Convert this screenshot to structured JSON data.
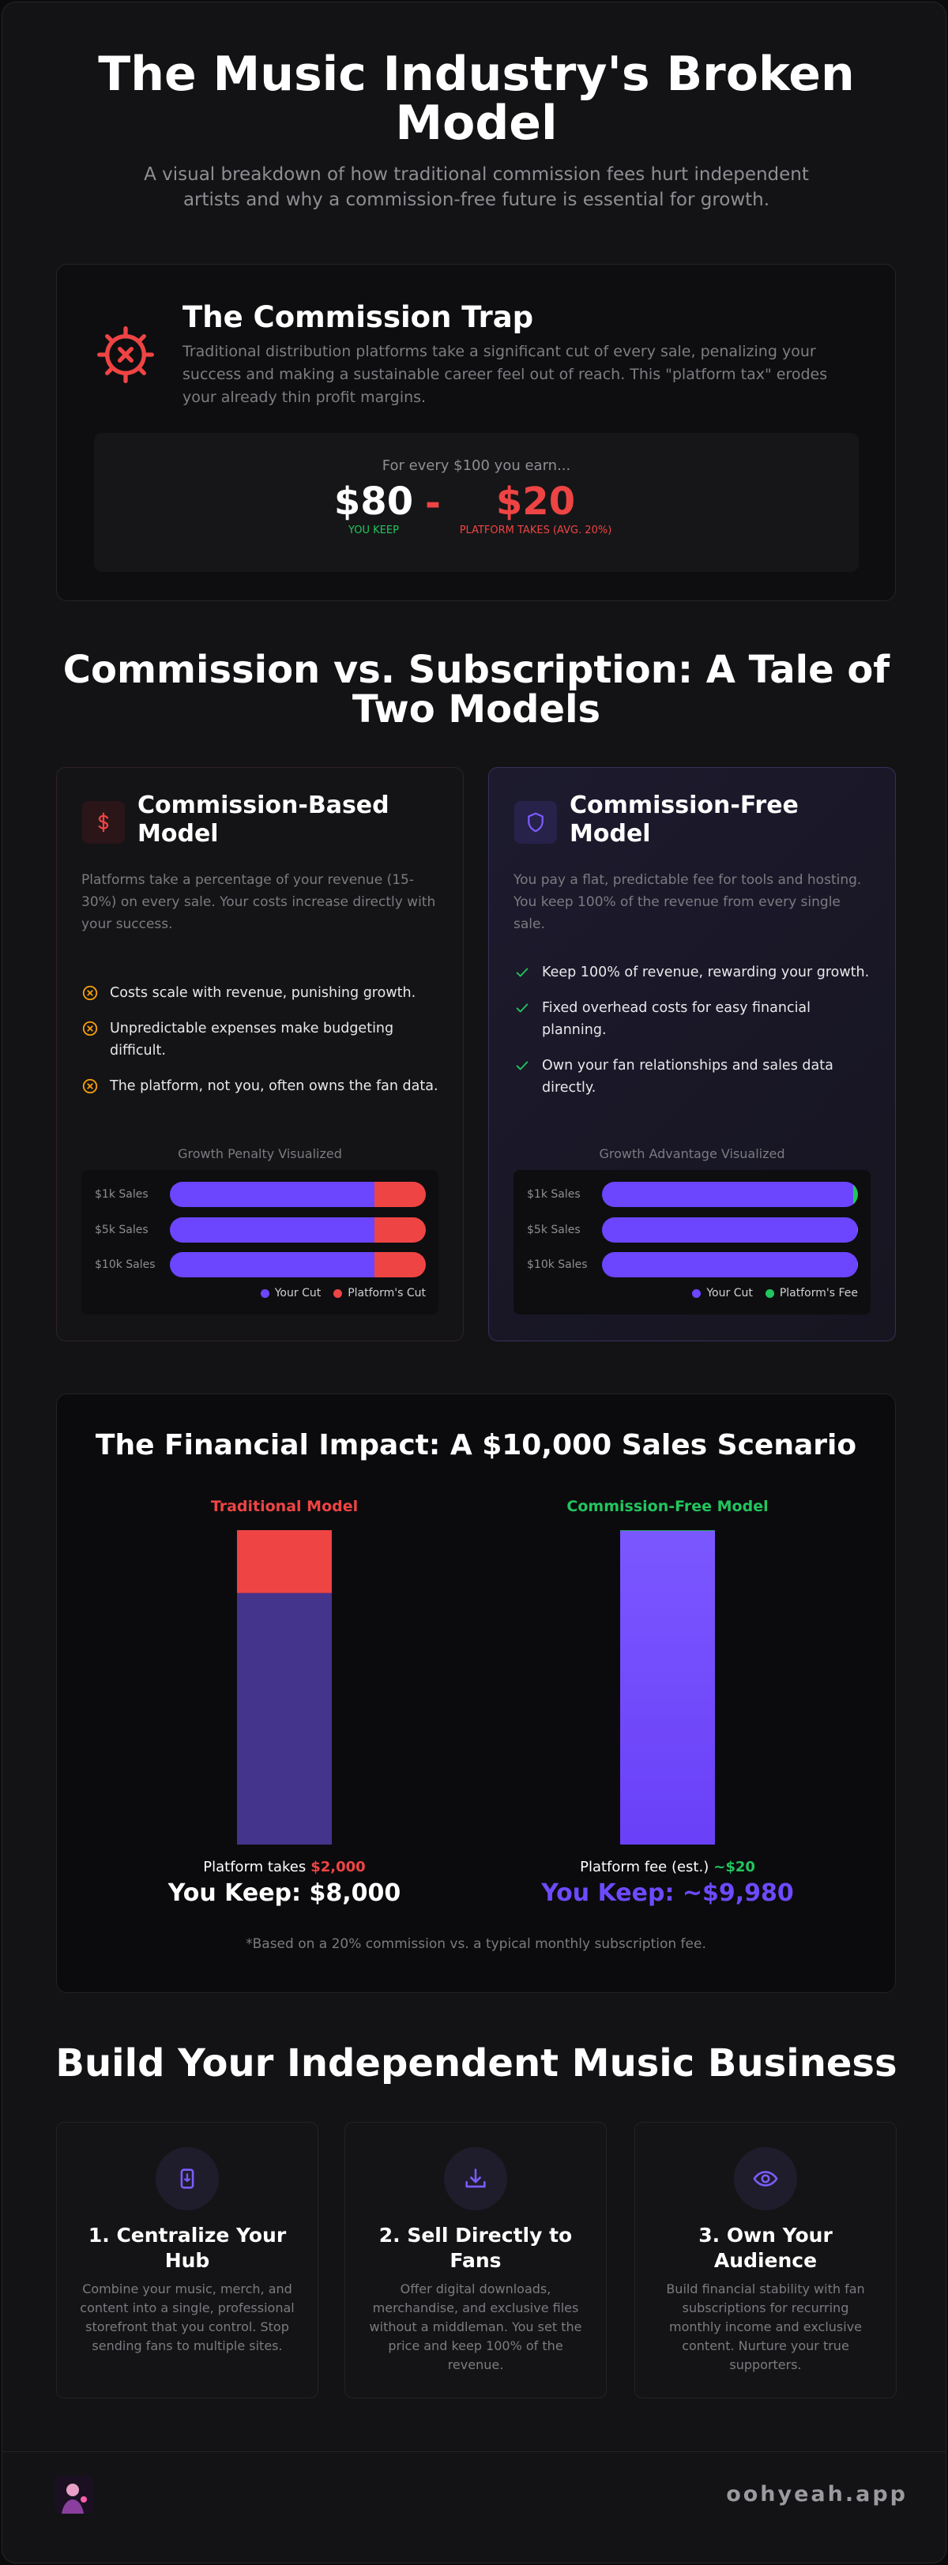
{
  "header": {
    "title": "The Music Industry's Broken Model",
    "subtitle": "A visual breakdown of how traditional commission fees hurt independent artists and why a commission-free future is essential for growth."
  },
  "trap": {
    "title": "The Commission Trap",
    "text": "Traditional distribution platforms take a significant cut of every sale, penalizing your success and making a sustainable career feel out of reach. This \"platform tax\" erodes your already thin profit margins.",
    "example": {
      "caption": "For every $100 you earn...",
      "keep": "$80",
      "separator": "-",
      "take": "$20",
      "keep_label": "YOU KEEP",
      "take_label": "PLATFORM TAKES (AVG. 20%)"
    }
  },
  "comparison": {
    "title": "Commission vs. Subscription: A Tale of Two Models",
    "models": [
      {
        "title": "Commission-Based Model",
        "text": "Platforms take a percentage of your revenue (15-30%) on every sale. Your costs increase directly with your success.",
        "points": [
          "Costs scale with revenue, punishing growth.",
          "Unpredictable expenses make budgeting difficult.",
          "The platform, not you, often owns the fan data."
        ],
        "chart": {
          "title": "Growth Penalty Visualized",
          "cut_color": "#6b46fe",
          "fee_color": "#ef4444",
          "rows": [
            {
              "label": "$1k Sales",
              "cut": 80,
              "fee": 20
            },
            {
              "label": "$5k Sales",
              "cut": 80,
              "fee": 20
            },
            {
              "label": "$10k Sales",
              "cut": 80,
              "fee": 20
            }
          ],
          "legend": [
            "Your Cut",
            "Platform's Cut"
          ]
        }
      },
      {
        "title": "Commission-Free Model",
        "text": "You pay a flat, predictable fee for tools and hosting. You keep 100% of the revenue from every single sale.",
        "points": [
          "Keep 100% of revenue, rewarding your growth.",
          "Fixed overhead costs for easy financial planning.",
          "Own your fan relationships and sales data directly."
        ],
        "chart": {
          "title": "Growth Advantage Visualized",
          "cut_color": "#6b46fe",
          "fee_color": "#22c55e",
          "rows": [
            {
              "label": "$1k Sales",
              "cut": 98,
              "fee": 2
            },
            {
              "label": "$5k Sales",
              "cut": 99.6,
              "fee": 0.4
            },
            {
              "label": "$10k Sales",
              "cut": 99.8,
              "fee": 0.2
            }
          ],
          "legend": [
            "Your Cut",
            "Platform's Fee"
          ]
        }
      }
    ]
  },
  "impact": {
    "title": "The Financial Impact: A $10,000 Sales Scenario",
    "scenarios": [
      {
        "name": "Traditional Model",
        "keep": 8000,
        "fee": 2000,
        "fee_text": "Platform takes",
        "fee_label": "$2,000",
        "keep_label": "You Keep: $8,000"
      },
      {
        "name": "Commission-Free Model",
        "keep": 9980,
        "fee": 20,
        "fee_text": "Platform fee (est.)",
        "fee_label": "~$20",
        "keep_label": "You Keep: ~$9,980"
      }
    ],
    "note": "*Based on a 20% commission vs. a typical monthly subscription fee."
  },
  "steps": {
    "title": "Build Your Independent Music Business",
    "items": [
      {
        "title": "1. Centralize Your Hub",
        "text": "Combine your music, merch, and content into a single, professional storefront that you control. Stop sending fans to multiple sites."
      },
      {
        "title": "2. Sell Directly to Fans",
        "text": "Offer digital downloads, merchandise, and exclusive files without a middleman. You set the price and keep 100% of the revenue."
      },
      {
        "title": "3. Own Your Audience",
        "text": "Build financial stability with fan subscriptions for recurring monthly income and exclusive content. Nurture your true supporters."
      }
    ]
  },
  "footer": {
    "brand": "oohyeah.app"
  }
}
